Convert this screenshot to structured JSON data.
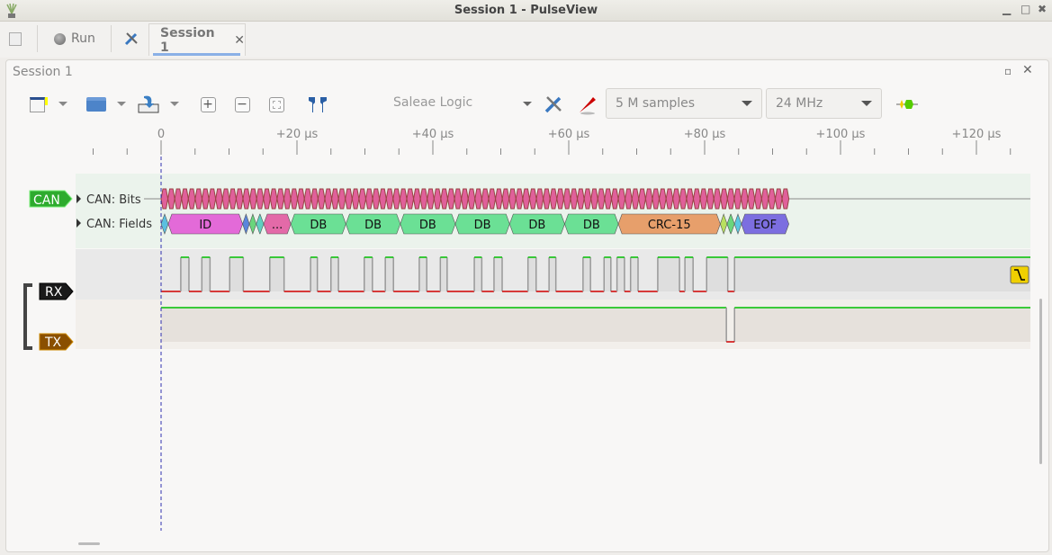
{
  "window": {
    "title": "Session 1 - PulseView"
  },
  "tabbar": {
    "run_label": "Run",
    "session_tab": "Session 1",
    "close_glyph": "✕"
  },
  "panel": {
    "title": "Session 1"
  },
  "toolbar": {
    "device": "Saleae Logic",
    "samples": "5 M samples",
    "samplerate": "24 MHz"
  },
  "ruler": {
    "ticks": [
      {
        "t": 0,
        "label": "0"
      },
      {
        "t": 20,
        "label": "+20 µs"
      },
      {
        "t": 40,
        "label": "+40 µs"
      },
      {
        "t": 60,
        "label": "+60 µs"
      },
      {
        "t": 80,
        "label": "+80 µs"
      },
      {
        "t": 100,
        "label": "+100 µs"
      },
      {
        "t": 120,
        "label": "+120 µs"
      }
    ],
    "unit": "µs"
  },
  "decoder": {
    "badge": "CAN",
    "rows": [
      {
        "label": "CAN: Bits"
      },
      {
        "label": "CAN: Fields"
      }
    ],
    "bits_end_us": 92.4,
    "bit_color": "#e0609a",
    "fields": [
      {
        "s": 0,
        "e": 1.05,
        "label": "",
        "color": "#5bbfe0"
      },
      {
        "s": 1.05,
        "e": 12.0,
        "label": "ID",
        "color": "#e36ad8"
      },
      {
        "s": 12.0,
        "e": 13.0,
        "label": "",
        "color": "#5a86dc"
      },
      {
        "s": 13.0,
        "e": 14.0,
        "label": "",
        "color": "#6ad67c"
      },
      {
        "s": 14.0,
        "e": 15.1,
        "label": "",
        "color": "#5fd0c0"
      },
      {
        "s": 15.1,
        "e": 19.1,
        "label": "...",
        "color": "#e36aa8"
      },
      {
        "s": 19.1,
        "e": 27.2,
        "label": "DB",
        "color": "#6be095"
      },
      {
        "s": 27.2,
        "e": 35.2,
        "label": "DB",
        "color": "#6be095"
      },
      {
        "s": 35.2,
        "e": 43.3,
        "label": "DB",
        "color": "#6be095"
      },
      {
        "s": 43.3,
        "e": 51.3,
        "label": "DB",
        "color": "#6be095"
      },
      {
        "s": 51.3,
        "e": 59.4,
        "label": "DB",
        "color": "#6be095"
      },
      {
        "s": 59.4,
        "e": 67.3,
        "label": "DB",
        "color": "#6be095"
      },
      {
        "s": 67.3,
        "e": 82.3,
        "label": "CRC-15",
        "color": "#e79f6b"
      },
      {
        "s": 82.3,
        "e": 83.3,
        "label": "",
        "color": "#b8e060"
      },
      {
        "s": 83.3,
        "e": 84.4,
        "label": "",
        "color": "#6ad67c"
      },
      {
        "s": 84.4,
        "e": 85.4,
        "label": "",
        "color": "#5bc8e0"
      },
      {
        "s": 85.4,
        "e": 92.4,
        "label": "EOF",
        "color": "#7c6ee0"
      }
    ]
  },
  "channels": [
    {
      "name": "RX",
      "color": "#1a1a1a",
      "high": [
        [
          2.9,
          4.1
        ],
        [
          6.0,
          7.2
        ],
        [
          10.1,
          12.1
        ],
        [
          16.0,
          18.1
        ],
        [
          22.0,
          23.0
        ],
        [
          25.0,
          26.1
        ],
        [
          29.9,
          31.1
        ],
        [
          33.0,
          34.2
        ],
        [
          38.0,
          39.1
        ],
        [
          41.1,
          42.1
        ],
        [
          46.1,
          47.2
        ],
        [
          49.0,
          50.2
        ],
        [
          54.0,
          55.2
        ],
        [
          57.1,
          58.1
        ],
        [
          62.1,
          63.2
        ],
        [
          65.2,
          66.2
        ],
        [
          67.1,
          68.2
        ],
        [
          69.1,
          70.2
        ],
        [
          73.1,
          76.3
        ],
        [
          77.1,
          78.3
        ],
        [
          80.3,
          83.4
        ],
        [
          84.4,
          128
        ]
      ],
      "trigger": "falling-edge"
    },
    {
      "name": "TX",
      "color": "#8a4f00",
      "low": [
        [
          83.2,
          84.4
        ]
      ]
    }
  ],
  "colors": {
    "high": "#00c000",
    "low": "#d00000",
    "cursor": "#3030b0"
  }
}
